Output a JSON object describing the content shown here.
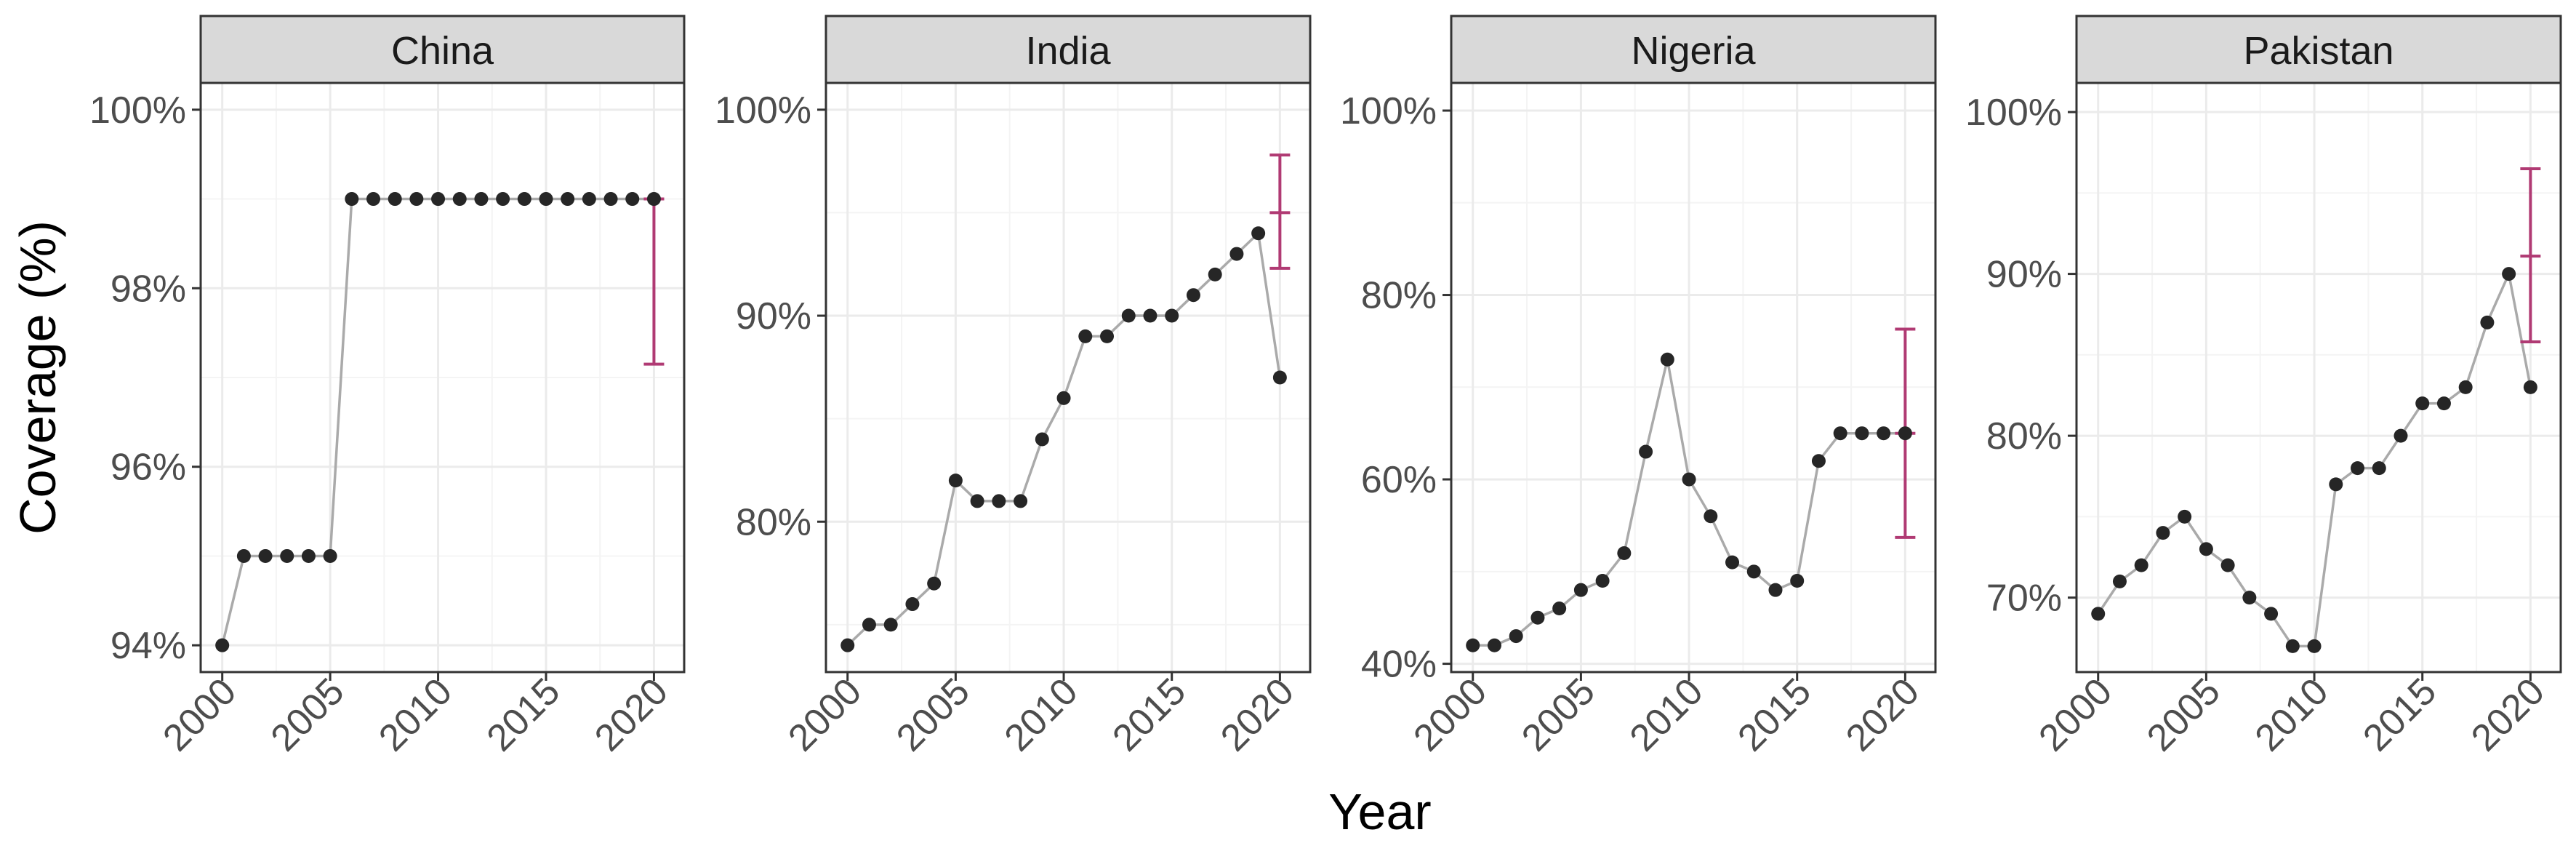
{
  "figure": {
    "xlabel": "Year",
    "ylabel": "Coverage (%)"
  },
  "colors": {
    "line": "#aaaaaa",
    "point": "#262626",
    "estimate": "#b03a73",
    "strip": "#d9d9d9",
    "grid_major": "#ebebeb",
    "grid_minor": "#f4f4f4"
  },
  "chart_data": [
    {
      "type": "line",
      "title": "China",
      "x": [
        2000,
        2001,
        2002,
        2003,
        2004,
        2005,
        2006,
        2007,
        2008,
        2009,
        2010,
        2011,
        2012,
        2013,
        2014,
        2015,
        2016,
        2017,
        2018,
        2019,
        2020
      ],
      "values": [
        94,
        95,
        95,
        95,
        95,
        95,
        99,
        99,
        99,
        99,
        99,
        99,
        99,
        99,
        99,
        99,
        99,
        99,
        99,
        99,
        99
      ],
      "estimate": {
        "x": 2020,
        "value": 99,
        "lower": 97.15,
        "upper": 99
      },
      "ylim": [
        93.7,
        100.3
      ],
      "yticks": [
        94,
        96,
        98,
        100
      ],
      "ytick_labels": [
        "94%",
        "96%",
        "98%",
        "100%"
      ],
      "xlim": [
        1999,
        2021.4
      ],
      "xticks": [
        2000,
        2005,
        2010,
        2015,
        2020
      ],
      "xtick_labels": [
        "2000",
        "2005",
        "2010",
        "2015",
        "2020"
      ]
    },
    {
      "type": "line",
      "title": "India",
      "x": [
        2000,
        2001,
        2002,
        2003,
        2004,
        2005,
        2006,
        2007,
        2008,
        2009,
        2010,
        2011,
        2012,
        2013,
        2014,
        2015,
        2016,
        2017,
        2018,
        2019,
        2020
      ],
      "values": [
        74,
        75,
        75,
        76,
        77,
        82,
        81,
        81,
        81,
        84,
        86,
        89,
        89,
        90,
        90,
        90,
        91,
        92,
        93,
        94,
        87
      ],
      "estimate": {
        "x": 2020,
        "value": 95,
        "lower": 92.3,
        "upper": 97.8
      },
      "ylim": [
        72.7,
        101.3
      ],
      "yticks": [
        80,
        90,
        100
      ],
      "ytick_labels": [
        "80%",
        "90%",
        "100%"
      ],
      "xlim": [
        1999,
        2021.4
      ],
      "xticks": [
        2000,
        2005,
        2010,
        2015,
        2020
      ],
      "xtick_labels": [
        "2000",
        "2005",
        "2010",
        "2015",
        "2020"
      ]
    },
    {
      "type": "line",
      "title": "Nigeria",
      "x": [
        2000,
        2001,
        2002,
        2003,
        2004,
        2005,
        2006,
        2007,
        2008,
        2009,
        2010,
        2011,
        2012,
        2013,
        2014,
        2015,
        2016,
        2017,
        2018,
        2019,
        2020
      ],
      "values": [
        42,
        42,
        43,
        45,
        46,
        48,
        49,
        52,
        63,
        73,
        60,
        56,
        51,
        50,
        48,
        49,
        62,
        65,
        65,
        65,
        65
      ],
      "estimate": {
        "x": 2020,
        "value": 65,
        "lower": 53.7,
        "upper": 76.3
      },
      "ylim": [
        39.1,
        103
      ],
      "yticks": [
        40,
        60,
        80,
        100
      ],
      "ytick_labels": [
        "40%",
        "60%",
        "80%",
        "100%"
      ],
      "xlim": [
        1999,
        2021.4
      ],
      "xticks": [
        2000,
        2005,
        2010,
        2015,
        2020
      ],
      "xtick_labels": [
        "2000",
        "2005",
        "2010",
        "2015",
        "2020"
      ]
    },
    {
      "type": "line",
      "title": "Pakistan",
      "x": [
        2000,
        2001,
        2002,
        2003,
        2004,
        2005,
        2006,
        2007,
        2008,
        2009,
        2010,
        2011,
        2012,
        2013,
        2014,
        2015,
        2016,
        2017,
        2018,
        2019,
        2020
      ],
      "values": [
        69,
        71,
        72,
        74,
        75,
        73,
        72,
        70,
        69,
        67,
        67,
        77,
        78,
        78,
        80,
        82,
        82,
        83,
        87,
        90,
        83
      ],
      "estimate": {
        "x": 2020,
        "value": 91.1,
        "lower": 85.8,
        "upper": 96.5
      },
      "ylim": [
        65.4,
        101.8
      ],
      "yticks": [
        70,
        80,
        90,
        100
      ],
      "ytick_labels": [
        "70%",
        "80%",
        "90%",
        "100%"
      ],
      "xlim": [
        1999,
        2021.4
      ],
      "xticks": [
        2000,
        2005,
        2010,
        2015,
        2020
      ],
      "xtick_labels": [
        "2000",
        "2005",
        "2010",
        "2015",
        "2020"
      ]
    }
  ]
}
